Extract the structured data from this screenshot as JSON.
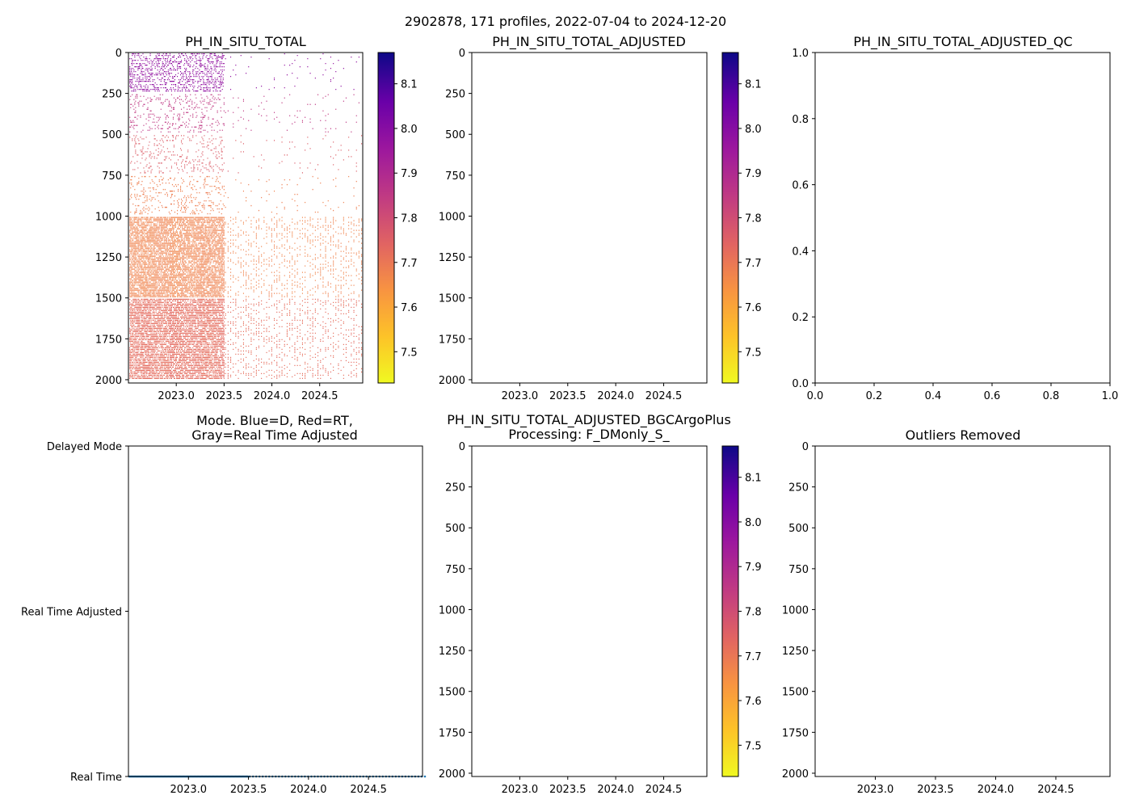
{
  "suptitle": "2902878, 171 profiles, 2022-07-04 to 2024-12-20",
  "chart_data": [
    {
      "id": "raw",
      "type": "heatmap",
      "title": "PH_IN_SITU_TOTAL",
      "xlim": [
        2022.5,
        2024.95
      ],
      "ylim": [
        2020,
        0
      ],
      "xticks": [
        "2023.0",
        "2023.5",
        "2024.0",
        "2024.5"
      ],
      "yticks": [
        "0",
        "250",
        "500",
        "750",
        "1000",
        "1250",
        "1500",
        "1750",
        "2000"
      ],
      "colorbar": {
        "vmin": 7.43,
        "vmax": 8.17,
        "ticks": [
          "7.5",
          "7.6",
          "7.7",
          "7.8",
          "7.9",
          "8.0",
          "8.1"
        ],
        "cmap": "plasma_r"
      },
      "profiles": 171,
      "dense_until": 2023.5,
      "surface_ph": 8.13,
      "ph_at_1000": 7.65,
      "deep_ph": 7.75
    },
    {
      "id": "adjusted",
      "type": "heatmap",
      "title": "PH_IN_SITU_TOTAL_ADJUSTED",
      "xlim": [
        2022.5,
        2024.95
      ],
      "ylim": [
        2020,
        0
      ],
      "xticks": [
        "2023.0",
        "2023.5",
        "2024.0",
        "2024.5"
      ],
      "yticks": [
        "0",
        "250",
        "500",
        "750",
        "1000",
        "1250",
        "1500",
        "1750",
        "2000"
      ],
      "colorbar": {
        "vmin": 7.43,
        "vmax": 8.17,
        "ticks": [
          "7.5",
          "7.6",
          "7.7",
          "7.8",
          "7.9",
          "8.0",
          "8.1"
        ],
        "cmap": "plasma_r"
      },
      "values": []
    },
    {
      "id": "qc",
      "type": "scatter",
      "title": "PH_IN_SITU_TOTAL_ADJUSTED_QC",
      "xlim": [
        0,
        1
      ],
      "ylim": [
        0,
        1
      ],
      "xticks": [
        "0.0",
        "0.2",
        "0.4",
        "0.6",
        "0.8",
        "1.0"
      ],
      "yticks": [
        "0.0",
        "0.2",
        "0.4",
        "0.6",
        "0.8",
        "1.0"
      ],
      "values": []
    },
    {
      "id": "mode",
      "type": "scatter",
      "title_line1": "Mode. Blue=D, Red=RT,",
      "title_line2": "Gray=Real Time Adjusted",
      "xlim": [
        2022.5,
        2024.95
      ],
      "xticks": [
        "2023.0",
        "2023.5",
        "2024.0",
        "2024.5"
      ],
      "categories": [
        "Delayed Mode",
        "Real Time Adjusted",
        "Real Time"
      ],
      "series": [
        {
          "name": "Real Time",
          "category": "Real Time",
          "count": 171,
          "color": "#1f77b4"
        }
      ]
    },
    {
      "id": "bgc",
      "type": "heatmap",
      "title_line1": "PH_IN_SITU_TOTAL_ADJUSTED_BGCArgoPlus",
      "title_line2": "Processing: F_DMonly_S_",
      "xlim": [
        2022.5,
        2024.95
      ],
      "ylim": [
        2020,
        0
      ],
      "xticks": [
        "2023.0",
        "2023.5",
        "2024.0",
        "2024.5"
      ],
      "yticks": [
        "0",
        "250",
        "500",
        "750",
        "1000",
        "1250",
        "1500",
        "1750",
        "2000"
      ],
      "colorbar": {
        "vmin": 7.43,
        "vmax": 8.17,
        "ticks": [
          "7.5",
          "7.6",
          "7.7",
          "7.8",
          "7.9",
          "8.0",
          "8.1"
        ],
        "cmap": "plasma_r"
      },
      "values": []
    },
    {
      "id": "outliers",
      "type": "scatter",
      "title": "Outliers Removed",
      "xlim": [
        2022.5,
        2024.95
      ],
      "ylim": [
        2020,
        0
      ],
      "xticks": [
        "2023.0",
        "2023.5",
        "2024.0",
        "2024.5"
      ],
      "yticks": [
        "0",
        "250",
        "500",
        "750",
        "1000",
        "1250",
        "1500",
        "1750",
        "2000"
      ],
      "values": []
    }
  ]
}
